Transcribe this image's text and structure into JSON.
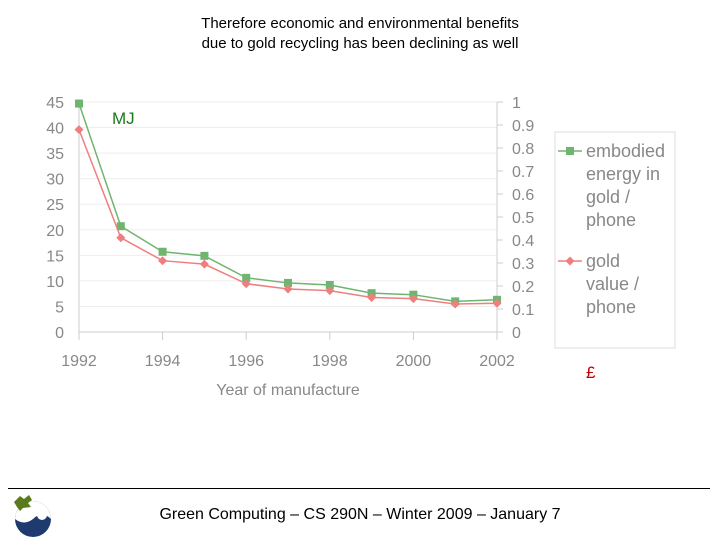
{
  "slide": {
    "title_line1": "Therefore economic and environmental benefits",
    "title_line2": "due to gold recycling has been declining as well",
    "footer": "Green Computing – CS 290N – Winter 2009 – January 7"
  },
  "chart_data": {
    "type": "line",
    "x": [
      1992,
      1993,
      1994,
      1995,
      1996,
      1997,
      1998,
      1999,
      2000,
      2001,
      2002
    ],
    "xticks": [
      "1992",
      "1994",
      "1996",
      "1998",
      "2000",
      "2002"
    ],
    "xlabel": "Year of manufacture",
    "ylim": [
      0,
      45
    ],
    "yticks": [
      "0",
      "5",
      "10",
      "15",
      "20",
      "25",
      "30",
      "35",
      "40",
      "45"
    ],
    "y2lim": [
      0,
      1
    ],
    "y2ticks": [
      "0",
      "0.1",
      "0.2",
      "0.3",
      "0.4",
      "0.5",
      "0.6",
      "0.7",
      "0.8",
      "0.9",
      "1"
    ],
    "ylabel": "MJ",
    "y2label": "£",
    "legend": "right",
    "series": [
      {
        "name": "embodied energy in gold / phone",
        "axis": "left",
        "color": "#6fb56f",
        "marker": "square",
        "values": [
          44.7,
          20.7,
          15.7,
          14.9,
          10.6,
          9.6,
          9.2,
          7.6,
          7.3,
          6.0,
          6.3
        ]
      },
      {
        "name": "gold value / phone",
        "axis": "right",
        "color": "#ef7f7f",
        "marker": "diamond",
        "values": [
          0.88,
          0.41,
          0.31,
          0.295,
          0.21,
          0.187,
          0.18,
          0.15,
          0.145,
          0.122,
          0.125
        ]
      }
    ]
  }
}
